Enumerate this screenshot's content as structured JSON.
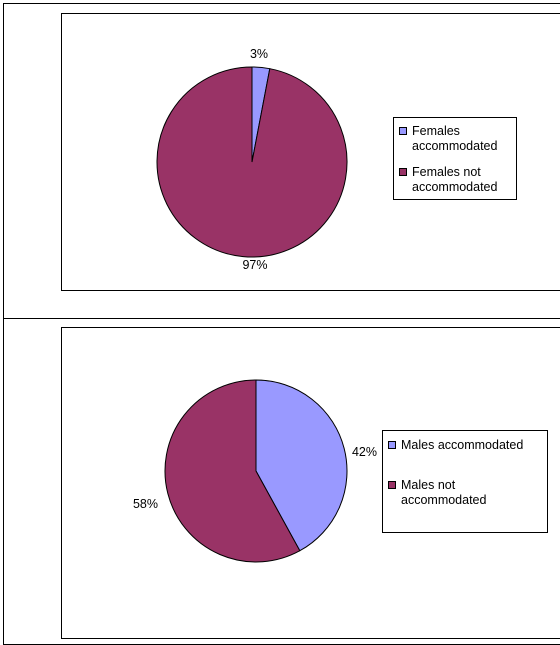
{
  "chart_data": [
    {
      "type": "pie",
      "title": "",
      "categories": [
        "Females accommodated",
        "Females not accommodated"
      ],
      "values": [
        3,
        97
      ],
      "data_labels": [
        "3%",
        "97%"
      ],
      "legend": {
        "placement": "right",
        "entries": [
          "Females\naccommodated",
          "Females not\naccommodated"
        ]
      },
      "colors": [
        "#9999ff",
        "#993366"
      ]
    },
    {
      "type": "pie",
      "title": "",
      "categories": [
        "Males accommodated",
        "Males not accommodated"
      ],
      "values": [
        42,
        58
      ],
      "data_labels": [
        "42%",
        "58%"
      ],
      "legend": {
        "placement": "right",
        "entries": [
          "Males accommodated",
          "Males not\naccommodated"
        ]
      },
      "colors": [
        "#9999ff",
        "#993366"
      ]
    }
  ]
}
